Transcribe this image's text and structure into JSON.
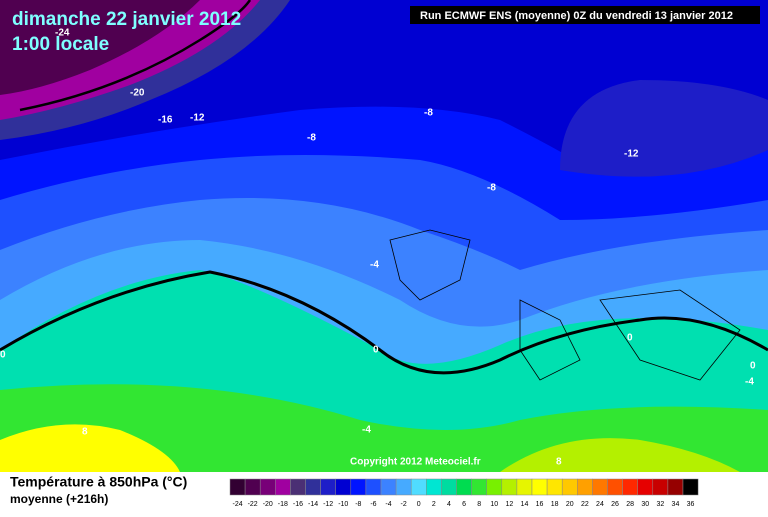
{
  "header": {
    "date": "dimanche 22 janvier 2012",
    "time": "1:00 locale",
    "run": "Run ECMWF ENS (moyenne) 0Z du vendredi 13 janvier 2012"
  },
  "map": {
    "contour_labels": [
      -24,
      -20,
      -16,
      -12,
      -8,
      -8,
      -8,
      -12,
      -4,
      0,
      0,
      0,
      0,
      -4,
      -4,
      8,
      8
    ],
    "copyright": "Copyright 2012 Meteociel.fr"
  },
  "legend": {
    "title": "Température à 850hPa (°C)",
    "subtitle": "moyenne  (+216h)",
    "ticks": [
      -24,
      -22,
      -20,
      -18,
      -16,
      -14,
      -12,
      -10,
      -8,
      -6,
      -4,
      -2,
      0,
      2,
      4,
      6,
      8,
      10,
      12,
      14,
      16,
      18,
      20,
      22,
      24,
      26,
      28,
      30,
      32,
      34,
      36
    ],
    "colors": [
      "#320032",
      "#500050",
      "#780078",
      "#a000a0",
      "#4b2f74",
      "#30309a",
      "#1e1ec8",
      "#0000d2",
      "#0014ff",
      "#1e50ff",
      "#3c82ff",
      "#46aaff",
      "#50dcff",
      "#00e6d2",
      "#00dca0",
      "#00dc50",
      "#32e632",
      "#78f000",
      "#b4f000",
      "#e6f500",
      "#ffff00",
      "#ffe600",
      "#ffc800",
      "#ffa000",
      "#ff7800",
      "#ff5000",
      "#ff2800",
      "#e60000",
      "#c80000",
      "#960000",
      "#000000"
    ]
  }
}
